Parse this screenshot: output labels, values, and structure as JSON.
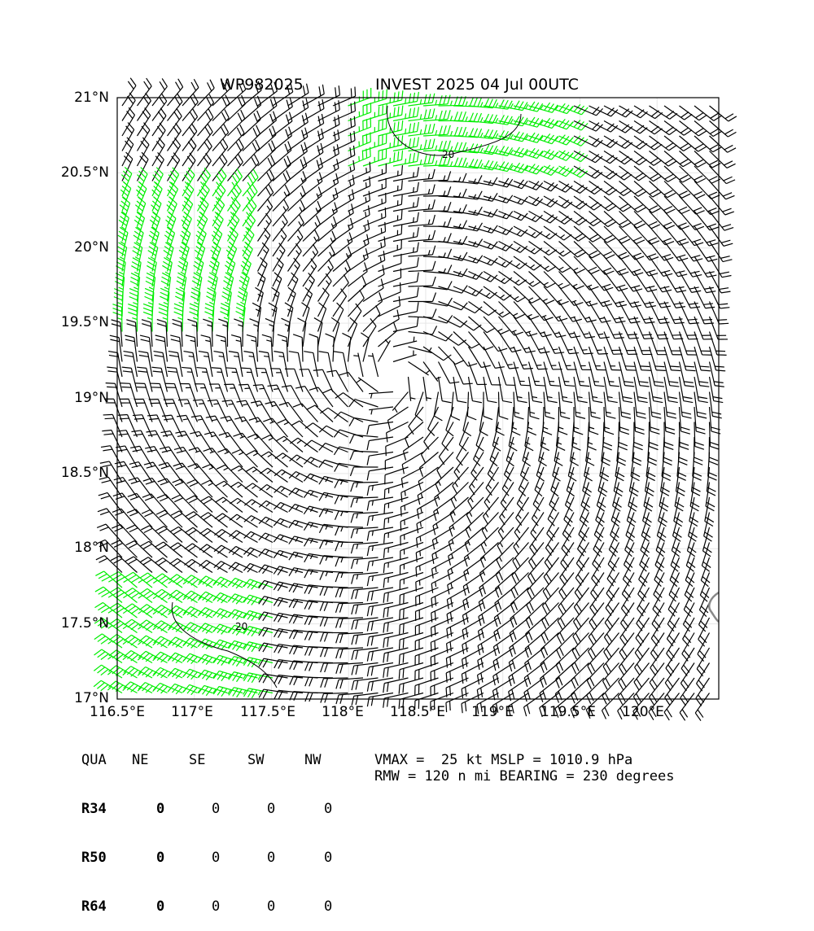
{
  "title": {
    "storm_id": "WP982025",
    "description": "INVEST 2025 04 Jul 00UTC"
  },
  "map": {
    "lon_range": [
      116.5,
      120.4
    ],
    "lat_range": [
      17.0,
      21.0
    ],
    "lon_ticks": [
      "116.5°E",
      "117°E",
      "117.5°E",
      "118°E",
      "118.5°E",
      "119°E",
      "119.5°E",
      "120°E"
    ],
    "lat_ticks": [
      "21°N",
      "20.5°N",
      "20°N",
      "19.5°N",
      "19°N",
      "18.5°N",
      "18°N",
      "17.5°N",
      "17°N"
    ],
    "center": {
      "lon": 118.3,
      "lat": 19.15
    },
    "barb_color": "#000000",
    "strong_barb_color": "#00ee00",
    "coast_color": "#888888",
    "contour_labels": [
      "20",
      "20"
    ]
  },
  "radii_table": {
    "header": [
      "QUA",
      "NE",
      "SE",
      "SW",
      "NW"
    ],
    "rows": [
      {
        "label": "R34",
        "values": [
          "0",
          "0",
          "0",
          "0"
        ]
      },
      {
        "label": "R50",
        "values": [
          "0",
          "0",
          "0",
          "0"
        ]
      },
      {
        "label": "R64",
        "values": [
          "0",
          "0",
          "0",
          "0"
        ]
      }
    ]
  },
  "info": {
    "line1": "VMAX =  25 kt MSLP = 1010.9 hPa",
    "line2": "RMW = 120 n mi BEARING = 230 degrees"
  }
}
